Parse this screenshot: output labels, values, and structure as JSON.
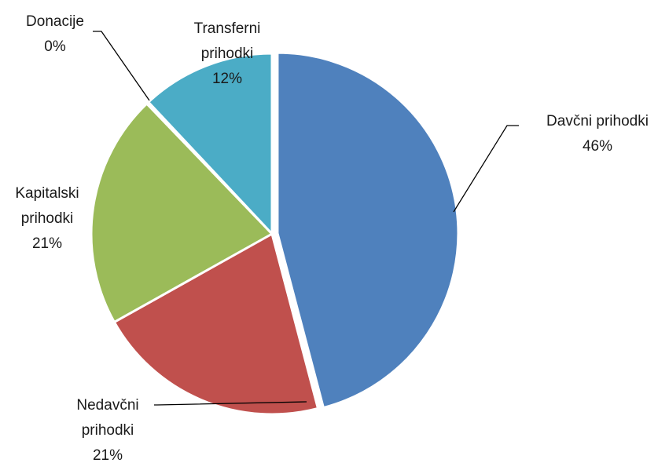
{
  "chart_data": {
    "type": "pie",
    "slices": [
      {
        "label_lines": [
          "Davčni prihodki"
        ],
        "value": 46,
        "value_label": "46%",
        "color": "#4F81BD"
      },
      {
        "label_lines": [
          "Nedavčni",
          "prihodki"
        ],
        "value": 21,
        "value_label": "21%",
        "color": "#C0504D"
      },
      {
        "label_lines": [
          "Kapitalski",
          "prihodki"
        ],
        "value": 21,
        "value_label": "21%",
        "color": "#9BBB59"
      },
      {
        "label_lines": [
          "Donacije"
        ],
        "value": 0.2,
        "value_label": "0%",
        "color": "#8064A2"
      },
      {
        "label_lines": [
          "Transferni",
          "prihodki"
        ],
        "value": 12,
        "value_label": "12%",
        "color": "#4BACC6"
      }
    ],
    "start_angle": "12 o'clock",
    "direction": "clockwise",
    "first_slice_exploded": true
  }
}
